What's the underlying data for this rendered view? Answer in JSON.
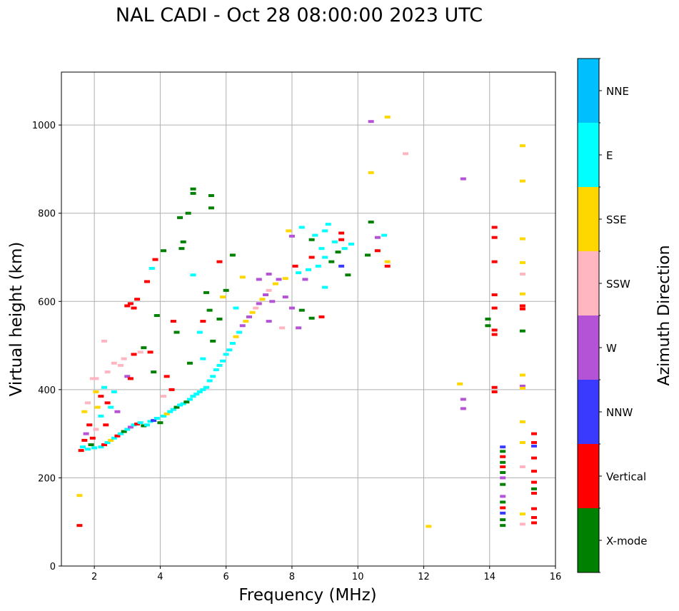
{
  "chart_data": {
    "type": "scatter",
    "title": "NAL CADI - Oct 28 08:00:00 2023 UTC",
    "xlabel": "Frequency (MHz)",
    "ylabel": "Virtual height (km)",
    "xlim": [
      1,
      16
    ],
    "ylim": [
      0,
      1120
    ],
    "xticks": [
      2,
      4,
      6,
      8,
      10,
      12,
      14,
      16
    ],
    "yticks": [
      0,
      200,
      400,
      600,
      800,
      1000
    ],
    "grid": true,
    "colorbar": {
      "label": "Azimuth Direction",
      "categories": [
        {
          "name": "X-mode",
          "color": "#008000"
        },
        {
          "name": "Vertical",
          "color": "#ff0000"
        },
        {
          "name": "NNW",
          "color": "#3a3aff"
        },
        {
          "name": "W",
          "color": "#b553d6"
        },
        {
          "name": "SSW",
          "color": "#ffb6c1"
        },
        {
          "name": "SSE",
          "color": "#ffd700"
        },
        {
          "name": "E",
          "color": "#00ffff"
        },
        {
          "name": "NNE",
          "color": "#00bfff"
        }
      ]
    },
    "points": [
      [
        1.55,
        160,
        "SSE"
      ],
      [
        1.55,
        92,
        "Vertical"
      ],
      [
        1.6,
        262,
        "Vertical"
      ],
      [
        1.65,
        270,
        "E"
      ],
      [
        1.7,
        285,
        "Vertical"
      ],
      [
        1.75,
        300,
        "W"
      ],
      [
        1.8,
        265,
        "E"
      ],
      [
        1.85,
        320,
        "Vertical"
      ],
      [
        1.9,
        275,
        "X-mode"
      ],
      [
        1.95,
        290,
        "Vertical"
      ],
      [
        2.0,
        268,
        "E"
      ],
      [
        2.05,
        310,
        "SSW"
      ],
      [
        1.95,
        425,
        "SSW"
      ],
      [
        2.05,
        425,
        "SSW"
      ],
      [
        2.1,
        360,
        "SSE"
      ],
      [
        1.8,
        370,
        "SSW"
      ],
      [
        1.7,
        350,
        "SSE"
      ],
      [
        2.2,
        270,
        "E"
      ],
      [
        2.3,
        275,
        "Vertical"
      ],
      [
        2.4,
        280,
        "E"
      ],
      [
        2.5,
        285,
        "SSE"
      ],
      [
        2.6,
        290,
        "E"
      ],
      [
        2.7,
        295,
        "Vertical"
      ],
      [
        2.8,
        300,
        "E"
      ],
      [
        2.9,
        305,
        "X-mode"
      ],
      [
        3.0,
        310,
        "E"
      ],
      [
        3.1,
        315,
        "W"
      ],
      [
        3.2,
        320,
        "E"
      ],
      [
        3.3,
        322,
        "Vertical"
      ],
      [
        3.4,
        325,
        "E"
      ],
      [
        3.5,
        318,
        "X-mode"
      ],
      [
        3.6,
        320,
        "E"
      ],
      [
        3.7,
        328,
        "E"
      ],
      [
        3.8,
        330,
        "NNW"
      ],
      [
        3.9,
        335,
        "E"
      ],
      [
        4.0,
        325,
        "X-mode"
      ],
      [
        4.1,
        340,
        "E"
      ],
      [
        4.2,
        345,
        "SSE"
      ],
      [
        4.3,
        350,
        "E"
      ],
      [
        4.4,
        355,
        "E"
      ],
      [
        4.5,
        360,
        "X-mode"
      ],
      [
        4.6,
        365,
        "E"
      ],
      [
        4.7,
        368,
        "E"
      ],
      [
        4.8,
        372,
        "X-mode"
      ],
      [
        4.9,
        378,
        "E"
      ],
      [
        5.0,
        385,
        "E"
      ],
      [
        5.1,
        390,
        "E"
      ],
      [
        5.2,
        395,
        "E"
      ],
      [
        5.3,
        400,
        "E"
      ],
      [
        5.4,
        405,
        "E"
      ],
      [
        5.5,
        420,
        "E"
      ],
      [
        5.6,
        430,
        "E"
      ],
      [
        5.7,
        445,
        "E"
      ],
      [
        5.8,
        455,
        "E"
      ],
      [
        5.9,
        465,
        "E"
      ],
      [
        6.0,
        480,
        "E"
      ],
      [
        6.1,
        490,
        "E"
      ],
      [
        6.2,
        505,
        "E"
      ],
      [
        6.3,
        520,
        "SSE"
      ],
      [
        6.4,
        530,
        "E"
      ],
      [
        6.5,
        545,
        "W"
      ],
      [
        6.6,
        555,
        "SSE"
      ],
      [
        6.7,
        565,
        "W"
      ],
      [
        6.8,
        575,
        "SSE"
      ],
      [
        6.9,
        585,
        "SSW"
      ],
      [
        7.0,
        595,
        "W"
      ],
      [
        7.1,
        605,
        "SSE"
      ],
      [
        7.2,
        615,
        "W"
      ],
      [
        7.3,
        625,
        "SSW"
      ],
      [
        7.4,
        600,
        "W"
      ],
      [
        7.5,
        640,
        "SSE"
      ],
      [
        7.6,
        650,
        "W"
      ],
      [
        7.8,
        610,
        "W"
      ],
      [
        8.0,
        585,
        "W"
      ],
      [
        8.2,
        665,
        "E"
      ],
      [
        8.5,
        672,
        "E"
      ],
      [
        8.8,
        680,
        "E"
      ],
      [
        9.0,
        700,
        "E"
      ],
      [
        9.2,
        690,
        "X-mode"
      ],
      [
        9.4,
        712,
        "X-mode"
      ],
      [
        9.6,
        720,
        "E"
      ],
      [
        9.8,
        730,
        "E"
      ],
      [
        8.6,
        740,
        "X-mode"
      ],
      [
        9.0,
        760,
        "E"
      ],
      [
        9.5,
        755,
        "Vertical"
      ],
      [
        10.4,
        780,
        "X-mode"
      ],
      [
        10.6,
        745,
        "W"
      ],
      [
        10.8,
        750,
        "E"
      ],
      [
        10.6,
        715,
        "Vertical"
      ],
      [
        10.9,
        680,
        "Vertical"
      ],
      [
        10.9,
        690,
        "SSE"
      ],
      [
        8.6,
        562,
        "X-mode"
      ],
      [
        8.2,
        540,
        "W"
      ],
      [
        8.3,
        580,
        "X-mode"
      ],
      [
        8.9,
        565,
        "Vertical"
      ],
      [
        7.7,
        540,
        "SSW"
      ],
      [
        7.3,
        555,
        "W"
      ],
      [
        10.4,
        1008,
        "W"
      ],
      [
        10.9,
        1018,
        "SSE"
      ],
      [
        10.4,
        892,
        "SSE"
      ],
      [
        11.45,
        935,
        "SSW"
      ],
      [
        12.15,
        90,
        "SSE"
      ],
      [
        13.2,
        878,
        "W"
      ],
      [
        13.1,
        413,
        "SSE"
      ],
      [
        13.2,
        378,
        "W"
      ],
      [
        13.2,
        357,
        "W"
      ],
      [
        5.0,
        855,
        "X-mode"
      ],
      [
        5.0,
        845,
        "X-mode"
      ],
      [
        5.55,
        840,
        "X-mode"
      ],
      [
        5.55,
        812,
        "X-mode"
      ],
      [
        4.85,
        800,
        "X-mode"
      ],
      [
        4.6,
        790,
        "X-mode"
      ],
      [
        4.7,
        735,
        "X-mode"
      ],
      [
        4.65,
        720,
        "X-mode"
      ],
      [
        4.1,
        715,
        "X-mode"
      ],
      [
        3.85,
        695,
        "Vertical"
      ],
      [
        3.75,
        675,
        "E"
      ],
      [
        3.6,
        645,
        "Vertical"
      ],
      [
        3.3,
        605,
        "Vertical"
      ],
      [
        3.2,
        585,
        "Vertical"
      ],
      [
        3.1,
        595,
        "Vertical"
      ],
      [
        3.0,
        590,
        "Vertical"
      ],
      [
        3.9,
        568,
        "X-mode"
      ],
      [
        4.5,
        530,
        "X-mode"
      ],
      [
        4.4,
        555,
        "Vertical"
      ],
      [
        3.7,
        485,
        "Vertical"
      ],
      [
        3.5,
        495,
        "X-mode"
      ],
      [
        3.4,
        485,
        "SSW"
      ],
      [
        3.2,
        480,
        "Vertical"
      ],
      [
        2.9,
        470,
        "SSW"
      ],
      [
        2.8,
        455,
        "SSW"
      ],
      [
        2.6,
        460,
        "SSW"
      ],
      [
        2.4,
        440,
        "SSW"
      ],
      [
        2.3,
        510,
        "SSW"
      ],
      [
        3.0,
        430,
        "W"
      ],
      [
        3.1,
        425,
        "Vertical"
      ],
      [
        3.8,
        440,
        "X-mode"
      ],
      [
        4.2,
        430,
        "Vertical"
      ],
      [
        4.35,
        400,
        "Vertical"
      ],
      [
        4.1,
        385,
        "SSW"
      ],
      [
        2.6,
        395,
        "E"
      ],
      [
        2.4,
        370,
        "Vertical"
      ],
      [
        2.2,
        385,
        "Vertical"
      ],
      [
        2.05,
        395,
        "SSE"
      ],
      [
        2.3,
        405,
        "E"
      ],
      [
        2.5,
        360,
        "E"
      ],
      [
        2.2,
        340,
        "E"
      ],
      [
        2.35,
        320,
        "Vertical"
      ],
      [
        2.7,
        350,
        "W"
      ],
      [
        5.6,
        510,
        "X-mode"
      ],
      [
        5.8,
        560,
        "X-mode"
      ],
      [
        5.9,
        610,
        "SSE"
      ],
      [
        6.0,
        625,
        "X-mode"
      ],
      [
        5.5,
        580,
        "X-mode"
      ],
      [
        5.3,
        555,
        "Vertical"
      ],
      [
        5.2,
        530,
        "E"
      ],
      [
        5.4,
        620,
        "X-mode"
      ],
      [
        5.0,
        660,
        "E"
      ],
      [
        5.8,
        690,
        "Vertical"
      ],
      [
        6.2,
        705,
        "X-mode"
      ],
      [
        4.9,
        460,
        "X-mode"
      ],
      [
        5.3,
        470,
        "E"
      ],
      [
        6.3,
        585,
        "E"
      ],
      [
        6.5,
        655,
        "SSE"
      ],
      [
        7.0,
        650,
        "W"
      ],
      [
        7.3,
        662,
        "W"
      ],
      [
        7.8,
        652,
        "SSE"
      ],
      [
        8.1,
        680,
        "Vertical"
      ],
      [
        8.4,
        650,
        "W"
      ],
      [
        8.6,
        700,
        "Vertical"
      ],
      [
        8.9,
        720,
        "E"
      ],
      [
        9.3,
        735,
        "E"
      ],
      [
        9.7,
        660,
        "X-mode"
      ],
      [
        9.5,
        680,
        "NNW"
      ],
      [
        9.0,
        632,
        "E"
      ],
      [
        8.0,
        748,
        "W"
      ],
      [
        7.9,
        760,
        "SSE"
      ],
      [
        8.3,
        768,
        "E"
      ],
      [
        8.7,
        750,
        "E"
      ],
      [
        9.1,
        775,
        "E"
      ],
      [
        9.5,
        740,
        "Vertical"
      ],
      [
        10.3,
        705,
        "X-mode"
      ],
      [
        14.15,
        768,
        "Vertical"
      ],
      [
        14.15,
        745,
        "Vertical"
      ],
      [
        14.15,
        690,
        "Vertical"
      ],
      [
        14.15,
        615,
        "Vertical"
      ],
      [
        14.15,
        585,
        "Vertical"
      ],
      [
        14.15,
        535,
        "Vertical"
      ],
      [
        14.15,
        525,
        "Vertical"
      ],
      [
        14.15,
        405,
        "Vertical"
      ],
      [
        14.15,
        395,
        "Vertical"
      ],
      [
        13.95,
        560,
        "X-mode"
      ],
      [
        13.95,
        545,
        "X-mode"
      ],
      [
        14.4,
        270,
        "NNW"
      ],
      [
        14.4,
        260,
        "X-mode"
      ],
      [
        14.4,
        248,
        "Vertical"
      ],
      [
        14.4,
        235,
        "X-mode"
      ],
      [
        14.4,
        225,
        "Vertical"
      ],
      [
        14.4,
        212,
        "X-mode"
      ],
      [
        14.4,
        200,
        "W"
      ],
      [
        14.4,
        185,
        "X-mode"
      ],
      [
        14.4,
        158,
        "W"
      ],
      [
        14.4,
        145,
        "X-mode"
      ],
      [
        14.4,
        132,
        "Vertical"
      ],
      [
        14.4,
        120,
        "NNW"
      ],
      [
        14.4,
        105,
        "X-mode"
      ],
      [
        14.4,
        92,
        "X-mode"
      ],
      [
        15.0,
        953,
        "SSE"
      ],
      [
        15.0,
        873,
        "SSE"
      ],
      [
        15.0,
        742,
        "SSE"
      ],
      [
        15.0,
        688,
        "SSE"
      ],
      [
        15.0,
        662,
        "SSW"
      ],
      [
        15.0,
        617,
        "SSE"
      ],
      [
        15.0,
        590,
        "Vertical"
      ],
      [
        15.0,
        583,
        "Vertical"
      ],
      [
        15.0,
        533,
        "X-mode"
      ],
      [
        15.0,
        433,
        "SSE"
      ],
      [
        15.0,
        408,
        "W"
      ],
      [
        15.0,
        403,
        "SSE"
      ],
      [
        15.0,
        327,
        "SSE"
      ],
      [
        15.0,
        280,
        "SSE"
      ],
      [
        15.0,
        225,
        "SSW"
      ],
      [
        15.0,
        118,
        "SSE"
      ],
      [
        15.0,
        95,
        "SSW"
      ],
      [
        15.35,
        300,
        "Vertical"
      ],
      [
        15.35,
        280,
        "Vertical"
      ],
      [
        15.35,
        272,
        "NNW"
      ],
      [
        15.35,
        245,
        "Vertical"
      ],
      [
        15.35,
        215,
        "Vertical"
      ],
      [
        15.35,
        190,
        "Vertical"
      ],
      [
        15.35,
        175,
        "X-mode"
      ],
      [
        15.35,
        165,
        "Vertical"
      ],
      [
        15.35,
        130,
        "Vertical"
      ],
      [
        15.35,
        110,
        "Vertical"
      ],
      [
        15.35,
        98,
        "Vertical"
      ]
    ]
  }
}
